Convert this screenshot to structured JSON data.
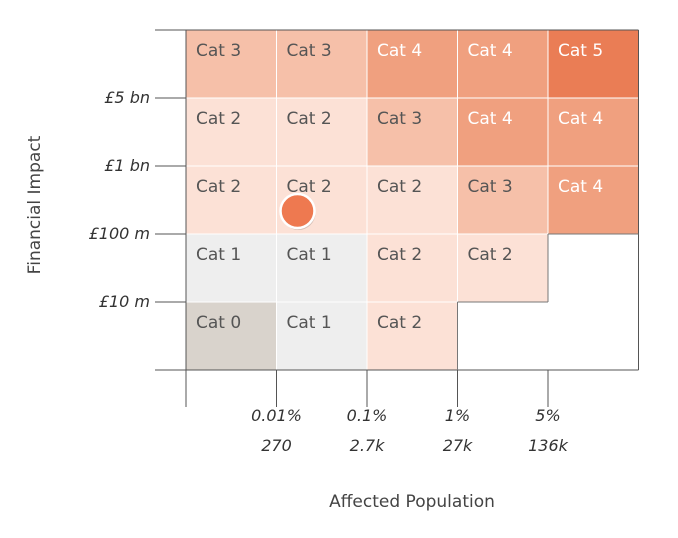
{
  "chart_data": {
    "type": "heatmap",
    "xlabel": "Affected Population",
    "ylabel": "Financial Impact",
    "x_ticks": [
      {
        "pct": "0.01%",
        "count": "270"
      },
      {
        "pct": "0.1%",
        "count": "2.7k"
      },
      {
        "pct": "1%",
        "count": "27k"
      },
      {
        "pct": "5%",
        "count": "136k"
      }
    ],
    "y_ticks": [
      "£5 bn",
      "£1 bn",
      "£100 m",
      "£10 m"
    ],
    "grid": [
      [
        "Cat 3",
        "Cat 3",
        "Cat 4",
        "Cat 4",
        "Cat 5"
      ],
      [
        "Cat 2",
        "Cat 2",
        "Cat 3",
        "Cat 4",
        "Cat 4"
      ],
      [
        "Cat 2",
        "Cat 2",
        "Cat 2",
        "Cat 3",
        "Cat 4"
      ],
      [
        "Cat 1",
        "Cat 1",
        "Cat 2",
        "Cat 2",
        ""
      ],
      [
        "Cat 0",
        "Cat 1",
        "Cat 2",
        "",
        ""
      ]
    ],
    "category_colors": {
      "Cat 0": "#d9d3cc",
      "Cat 1": "#eeeeee",
      "Cat 2": "#fce1d6",
      "Cat 3": "#f6c0a9",
      "Cat 4": "#f0a07f",
      "Cat 5": "#ea7d55"
    },
    "label_colors": {
      "Cat 0": "#555555",
      "Cat 1": "#555555",
      "Cat 2": "#555555",
      "Cat 3": "#555555",
      "Cat 4": "#ffffff",
      "Cat 5": "#ffffff"
    },
    "marker": {
      "row": 2,
      "col": 1,
      "color": "#ee7950"
    }
  }
}
